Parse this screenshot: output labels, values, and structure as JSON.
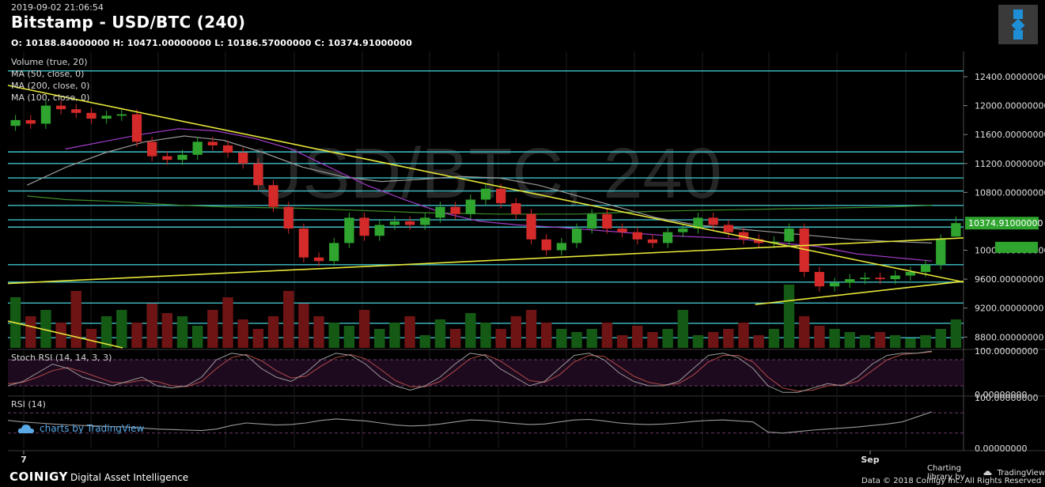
{
  "header": {
    "timestamp": "2019-09-02 21:06:54",
    "title": "Bitstamp - USD/BTC (240)",
    "ohlc": "O: 10188.84000000 H: 10471.00000000 L: 10186.57000000 C: 10374.91000000",
    "watermark": "USD/BTC, 240",
    "indicators": [
      "Volume (true, 20)",
      "MA (50, close, 0)",
      "MA (200, close, 0)",
      "MA (100, close, 0)"
    ]
  },
  "colors": {
    "up": "#2fa52f",
    "down": "#d42a2a",
    "trendline": "#e6e63a",
    "level": "#3fc0c8",
    "ma50": "#a23cc8",
    "ma100": "#9a9a9a",
    "ma200": "#3a8a2a",
    "vol_ma": "#2a7ac8",
    "price_label": "#2fa52f"
  },
  "chart_data": [
    {
      "type": "candlestick",
      "title": "Bitstamp - USD/BTC (240)",
      "ylim": [
        8650,
        12750
      ],
      "y_ticks": [
        "12400.00000000",
        "12000.00000000",
        "11600.00000000",
        "11200.00000000",
        "10800.00000000",
        "10000.00000000",
        "9600.00000000",
        "9200.00000000",
        "8800.00000000"
      ],
      "last_price_label": "10374.91000000",
      "x_ticks": [
        "7",
        "Sep"
      ],
      "last_candle": {
        "open": 10188.84,
        "high": 10471.0,
        "low": 10186.57,
        "close": 10374.91
      },
      "horizontal_levels": [
        12480,
        11360,
        11200,
        11000,
        10820,
        10620,
        10420,
        10320,
        9800,
        9560,
        9270,
        8990,
        8790
      ],
      "close_path": [
        11800,
        11750,
        12000,
        11950,
        11900,
        11820,
        11860,
        11880,
        11500,
        11300,
        11250,
        11320,
        11500,
        11450,
        11350,
        11200,
        10900,
        10600,
        10300,
        9900,
        9850,
        10100,
        10450,
        10200,
        10350,
        10400,
        10350,
        10450,
        10600,
        10500,
        10700,
        10850,
        10650,
        10500,
        10150,
        10000,
        10100,
        10300,
        10500,
        10300,
        10250,
        10150,
        10100,
        10250,
        10300,
        10450,
        10350,
        10250,
        10150,
        10100,
        10120,
        10300,
        9700,
        9500,
        9550,
        9600,
        9620,
        9600,
        9650,
        9700,
        9800,
        10150,
        10375
      ],
      "ma50_path": [
        11400,
        11500,
        11600,
        11680,
        11650,
        11550,
        11400,
        11150,
        10900,
        10700,
        10520,
        10400,
        10350,
        10320,
        10280,
        10240,
        10200,
        10180,
        10150,
        10100,
        10050,
        9950,
        9900,
        9850
      ],
      "ma100_path": [
        10900,
        11150,
        11350,
        11500,
        11580,
        11520,
        11350,
        11150,
        11020,
        10950,
        10980,
        11020,
        11000,
        10900,
        10750,
        10600,
        10450,
        10350,
        10300,
        10250,
        10200,
        10150,
        10120,
        10100
      ],
      "ma200_path": [
        10750,
        10700,
        10680,
        10650,
        10620,
        10600,
        10590,
        10580,
        10560,
        10540,
        10520,
        10510,
        10500,
        10500,
        10500,
        10520,
        10540,
        10550,
        10560,
        10570,
        10580,
        10590,
        10600,
        10620
      ],
      "trendlines": [
        {
          "from": [
            0,
            12280
          ],
          "to": [
            1,
            9560
          ]
        },
        {
          "from": [
            0,
            9540
          ],
          "to": [
            1,
            10170
          ]
        },
        {
          "from": [
            0.782,
            9250
          ],
          "to": [
            1,
            9570
          ]
        },
        {
          "from": [
            0,
            9020
          ],
          "to": [
            0.12,
            8650
          ]
        }
      ],
      "volume": [
        0.8,
        0.5,
        0.6,
        0.4,
        0.9,
        0.3,
        0.5,
        0.6,
        0.4,
        0.7,
        0.55,
        0.5,
        0.35,
        0.6,
        0.8,
        0.45,
        0.3,
        0.5,
        0.9,
        0.7,
        0.5,
        0.4,
        0.35,
        0.6,
        0.3,
        0.4,
        0.5,
        0.2,
        0.45,
        0.3,
        0.55,
        0.4,
        0.3,
        0.5,
        0.6,
        0.4,
        0.3,
        0.25,
        0.3,
        0.4,
        0.2,
        0.35,
        0.25,
        0.3,
        0.6,
        0.2,
        0.25,
        0.3,
        0.4,
        0.2,
        0.3,
        1.0,
        0.5,
        0.35,
        0.3,
        0.25,
        0.2,
        0.25,
        0.2,
        0.15,
        0.2,
        0.3,
        0.45
      ]
    },
    {
      "type": "line",
      "title": "Stoch RSI (14, 14, 3, 3)",
      "y_ticks": [
        "100.00000000",
        "0.00000000"
      ],
      "ylim": [
        0,
        100
      ],
      "levels": [
        80,
        20
      ],
      "k": [
        20,
        30,
        50,
        70,
        60,
        40,
        30,
        20,
        30,
        40,
        20,
        15,
        20,
        40,
        80,
        95,
        90,
        60,
        40,
        30,
        50,
        80,
        95,
        90,
        70,
        40,
        20,
        10,
        20,
        40,
        70,
        95,
        90,
        60,
        40,
        20,
        30,
        60,
        90,
        95,
        80,
        50,
        30,
        20,
        20,
        30,
        60,
        90,
        95,
        85,
        60,
        20,
        5,
        5,
        15,
        25,
        20,
        40,
        70,
        90,
        95,
        95,
        100
      ],
      "d": [
        25,
        28,
        40,
        55,
        62,
        52,
        40,
        28,
        27,
        33,
        30,
        20,
        18,
        30,
        60,
        85,
        92,
        78,
        55,
        38,
        42,
        65,
        85,
        92,
        82,
        58,
        32,
        18,
        18,
        30,
        55,
        82,
        92,
        78,
        55,
        32,
        28,
        45,
        75,
        90,
        88,
        65,
        42,
        28,
        22,
        25,
        45,
        75,
        90,
        90,
        75,
        40,
        15,
        8,
        10,
        20,
        22,
        30,
        55,
        80,
        92,
        95,
        98
      ]
    },
    {
      "type": "line",
      "title": "RSI (14)",
      "y_ticks": [
        "100.00000000",
        "0.00000000"
      ],
      "ylim": [
        0,
        100
      ],
      "levels": [
        70,
        30
      ],
      "values": [
        55,
        52,
        50,
        48,
        46,
        45,
        44,
        43,
        42,
        40,
        38,
        37,
        36,
        35,
        38,
        45,
        50,
        48,
        46,
        47,
        50,
        55,
        58,
        56,
        54,
        50,
        46,
        44,
        45,
        48,
        52,
        56,
        55,
        52,
        49,
        47,
        48,
        52,
        56,
        57,
        54,
        50,
        48,
        47,
        48,
        50,
        53,
        55,
        56,
        54,
        52,
        32,
        30,
        33,
        36,
        38,
        40,
        42,
        45,
        48,
        52,
        62,
        72
      ]
    }
  ],
  "watermark_link": "charts by TradingView",
  "footer": {
    "brand": "COINIGY",
    "tagline": "Digital Asset Intelligence",
    "charting_library": "Charting library by",
    "tv_brand": "TradingView",
    "copyright": "Data © 2018   Coinigy Inc. All Rights Reserved"
  }
}
